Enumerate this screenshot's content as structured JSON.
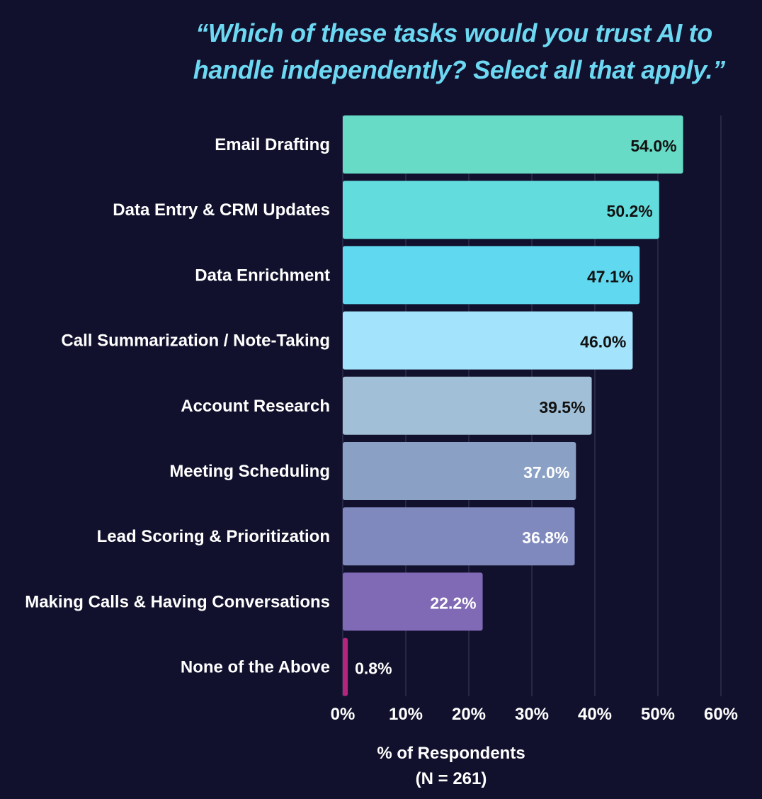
{
  "title_line1": "“Which of these tasks would you trust AI to",
  "title_line2": "handle independently? Select all that apply.”",
  "chart_data": {
    "type": "bar",
    "orientation": "horizontal",
    "title": "“Which of these tasks would you trust AI to handle independently? Select all that apply.”",
    "categories": [
      "Email Drafting",
      "Data Entry & CRM Updates",
      "Data Enrichment",
      "Call Summarization / Note-Taking",
      "Account Research",
      "Meeting Scheduling",
      "Lead Scoring & Prioritization",
      "Making Calls & Having Conversations",
      "None of the Above"
    ],
    "values": [
      54.0,
      50.2,
      47.1,
      46.0,
      39.5,
      37.0,
      36.8,
      22.2,
      0.8
    ],
    "value_labels": [
      "54.0%",
      "50.2%",
      "47.1%",
      "46.0%",
      "39.5%",
      "37.0%",
      "36.8%",
      "22.2%",
      "0.8%"
    ],
    "colors": [
      "#67dbc5",
      "#63dcdd",
      "#5fd8f0",
      "#a3e3fb",
      "#a1bfd6",
      "#8ba0c5",
      "#7f89bd",
      "#8069b5",
      "#b5257e"
    ],
    "value_label_colors": [
      "#111111",
      "#111111",
      "#111111",
      "#111111",
      "#111111",
      "#ffffff",
      "#ffffff",
      "#ffffff",
      "#ffffff"
    ],
    "xticks": [
      "0%",
      "10%",
      "20%",
      "30%",
      "40%",
      "50%",
      "60%"
    ],
    "xlim": [
      0,
      60
    ],
    "xlabel": "% of Respondents",
    "xlabel_sub": "(N = 261)",
    "grid": true
  }
}
